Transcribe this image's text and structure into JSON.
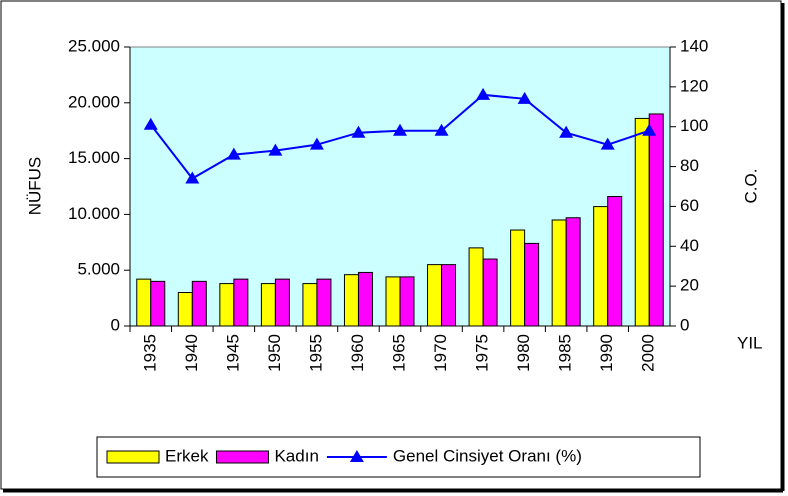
{
  "chart_data": {
    "type": "bar-line",
    "y_label": "NÜFUS",
    "y2_label": "C.O.",
    "x_label": "YIL",
    "categories": [
      "1935",
      "1940",
      "1945",
      "1950",
      "1955",
      "1960",
      "1965",
      "1970",
      "1975",
      "1980",
      "1985",
      "1990",
      "2000"
    ],
    "series": [
      {
        "name": "Erkek",
        "type": "bar",
        "color": "#ffff00",
        "values": [
          4200,
          3000,
          3800,
          3800,
          3800,
          4600,
          4400,
          5500,
          7000,
          8600,
          9500,
          10700,
          18600
        ]
      },
      {
        "name": "Kadın",
        "type": "bar",
        "color": "#ff00ff",
        "values": [
          4000,
          4000,
          4200,
          4200,
          4200,
          4800,
          4400,
          5500,
          6000,
          7400,
          9700,
          11600,
          19000
        ]
      },
      {
        "name": "Genel Cinsiyet Oranı (%)",
        "type": "line",
        "axis": "y2",
        "color": "#0000ff",
        "values": [
          101,
          74,
          86,
          88,
          91,
          97,
          98,
          98,
          116,
          114,
          97,
          91,
          98
        ]
      }
    ],
    "ylim": [
      0,
      25000
    ],
    "yticks": [
      0,
      {
        "value": 5000,
        "label": "5.000"
      },
      {
        "value": 10000,
        "label": "10.000"
      },
      {
        "value": 15000,
        "label": "15.000"
      },
      {
        "value": 20000,
        "label": "20.000"
      },
      {
        "value": 25000,
        "label": "25.000"
      }
    ],
    "y2lim": [
      0,
      140
    ],
    "y2ticks": [
      0,
      20,
      40,
      60,
      80,
      100,
      120,
      140
    ],
    "plot_background": "#ccffff",
    "legend": "bottom"
  }
}
